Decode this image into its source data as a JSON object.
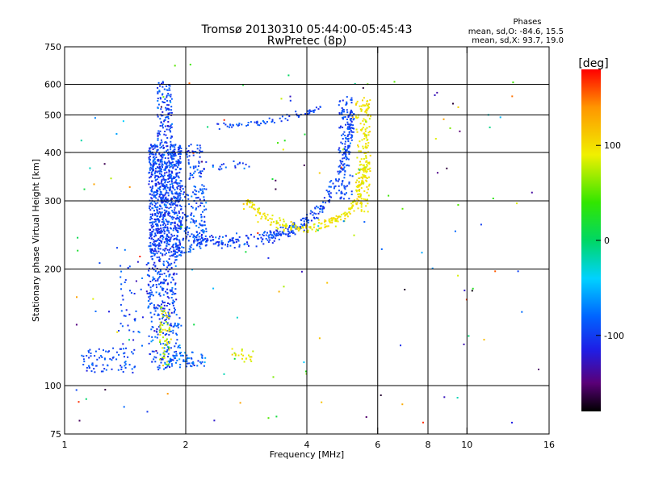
{
  "chart_data": {
    "type": "scatter",
    "title": "Tromsø 20130310 05:44:00-05:45:43",
    "subtitle": "RwPretec (8p)",
    "xlabel": "Frequency [MHz]",
    "ylabel": "Stationary phase Virtual Height [km]",
    "x_scale": "log",
    "y_scale": "log",
    "xlim": [
      1,
      16
    ],
    "ylim": [
      75,
      750
    ],
    "x_ticks": [
      1,
      2,
      4,
      6,
      8,
      10,
      16
    ],
    "y_ticks": [
      75,
      100,
      200,
      300,
      400,
      500,
      600,
      750
    ],
    "grid_x": [
      2,
      4,
      6,
      8,
      10
    ],
    "grid_y": [
      100,
      200,
      300,
      400,
      500,
      600
    ],
    "grid": true,
    "legend": {
      "title": "Phases",
      "line1": "mean, sd,O: -84.6, 15.5",
      "line2": "mean, sd,X:  93.7, 19.0"
    },
    "colorbar": {
      "label": "[deg]",
      "range": [
        -180,
        180
      ],
      "ticks": [
        100,
        0,
        -100
      ],
      "stops": [
        {
          "v": -180,
          "color": "#000000"
        },
        {
          "v": -150,
          "color": "#5a0078"
        },
        {
          "v": -115,
          "color": "#1e1ee6"
        },
        {
          "v": -80,
          "color": "#0064ff"
        },
        {
          "v": -40,
          "color": "#00d2ff"
        },
        {
          "v": 0,
          "color": "#00d764"
        },
        {
          "v": 40,
          "color": "#32e600"
        },
        {
          "v": 90,
          "color": "#f0f000"
        },
        {
          "v": 140,
          "color": "#ff9600"
        },
        {
          "v": 180,
          "color": "#ff0000"
        }
      ]
    },
    "point_groups": [
      {
        "name": "o-trace-dense-core",
        "shape": "box",
        "xr": [
          1.62,
          1.95
        ],
        "yr": [
          215,
          420
        ],
        "n": 900,
        "phase": -95,
        "phase_sd": 22
      },
      {
        "name": "o-trace-upper",
        "shape": "box",
        "xr": [
          1.7,
          1.85
        ],
        "yr": [
          420,
          610
        ],
        "n": 120,
        "phase": -95,
        "phase_sd": 22
      },
      {
        "name": "o-trace-lower-column",
        "shape": "box",
        "xr": [
          1.6,
          1.9
        ],
        "yr": [
          150,
          215
        ],
        "n": 200,
        "phase": -95,
        "phase_sd": 25
      },
      {
        "name": "o-trace-foot",
        "shape": "box",
        "xr": [
          1.62,
          1.95
        ],
        "yr": [
          110,
          150
        ],
        "n": 120,
        "phase": -90,
        "phase_sd": 30
      },
      {
        "name": "mixed-cluster-low",
        "shape": "box",
        "xr": [
          1.72,
          1.84
        ],
        "yr": [
          112,
          160
        ],
        "n": 60,
        "phase": 85,
        "phase_sd": 30
      },
      {
        "name": "cluster-2mhz",
        "shape": "box",
        "xr": [
          1.95,
          2.25
        ],
        "yr": [
          220,
          330
        ],
        "n": 160,
        "phase": -90,
        "phase_sd": 20
      },
      {
        "name": "cluster-2mhz-upper",
        "shape": "box",
        "xr": [
          2.0,
          2.2
        ],
        "yr": [
          340,
          420
        ],
        "n": 50,
        "phase": -95,
        "phase_sd": 20
      },
      {
        "name": "e-layer-trace",
        "shape": "box",
        "xr": [
          1.1,
          1.5
        ],
        "yr": [
          108,
          125
        ],
        "n": 80,
        "phase": -95,
        "phase_sd": 20
      },
      {
        "name": "e-layer-trace-2",
        "shape": "box",
        "xr": [
          1.8,
          2.25
        ],
        "yr": [
          112,
          122
        ],
        "n": 60,
        "phase": -85,
        "phase_sd": 25
      },
      {
        "name": "x-trace-low",
        "shape": "box",
        "xr": [
          2.6,
          3.0
        ],
        "yr": [
          115,
          125
        ],
        "n": 20,
        "phase": 90,
        "phase_sd": 25
      },
      {
        "name": "low-freq-scatter",
        "shape": "box",
        "xr": [
          1.35,
          1.6
        ],
        "yr": [
          125,
          230
        ],
        "n": 40,
        "phase": -95,
        "phase_sd": 25
      },
      {
        "name": "f-trace-o-lower",
        "shape": "curve",
        "xs": [
          2.1,
          2.5,
          3.0,
          3.5,
          4.0,
          4.5,
          5.0,
          5.2
        ],
        "ys": [
          240,
          235,
          240,
          248,
          262,
          300,
          390,
          500
        ],
        "n": 350,
        "jitter": 0.022,
        "phase": -95,
        "phase_sd": 18
      },
      {
        "name": "f-trace-o-vertical",
        "shape": "box",
        "xr": [
          4.8,
          5.2
        ],
        "yr": [
          300,
          560
        ],
        "n": 120,
        "phase": -95,
        "phase_sd": 18
      },
      {
        "name": "f-trace-x-lower",
        "shape": "curve",
        "xs": [
          2.8,
          3.1,
          3.5,
          4.0,
          4.5,
          5.0,
          5.4,
          5.6,
          5.7
        ],
        "ys": [
          300,
          275,
          260,
          255,
          262,
          275,
          300,
          380,
          540
        ],
        "n": 260,
        "jitter": 0.02,
        "phase": 95,
        "phase_sd": 16
      },
      {
        "name": "f-trace-x-vertical",
        "shape": "box",
        "xr": [
          5.3,
          5.75
        ],
        "yr": [
          280,
          560
        ],
        "n": 140,
        "phase": 95,
        "phase_sd": 16
      },
      {
        "name": "upper-trace-480km",
        "shape": "curve",
        "xs": [
          2.4,
          3.0,
          3.5,
          4.0,
          4.4
        ],
        "ys": [
          470,
          475,
          490,
          505,
          530
        ],
        "n": 70,
        "jitter": 0.01,
        "phase": -95,
        "phase_sd": 18
      },
      {
        "name": "upper-trace-380km",
        "shape": "box",
        "xr": [
          2.1,
          2.9
        ],
        "yr": [
          360,
          380
        ],
        "n": 25,
        "phase": -95,
        "phase_sd": 20
      },
      {
        "name": "background-noise",
        "shape": "box",
        "xr": [
          1.0,
          15.5
        ],
        "yr": [
          80,
          680
        ],
        "n": 140,
        "phase": 0,
        "phase_sd": 180
      }
    ]
  }
}
